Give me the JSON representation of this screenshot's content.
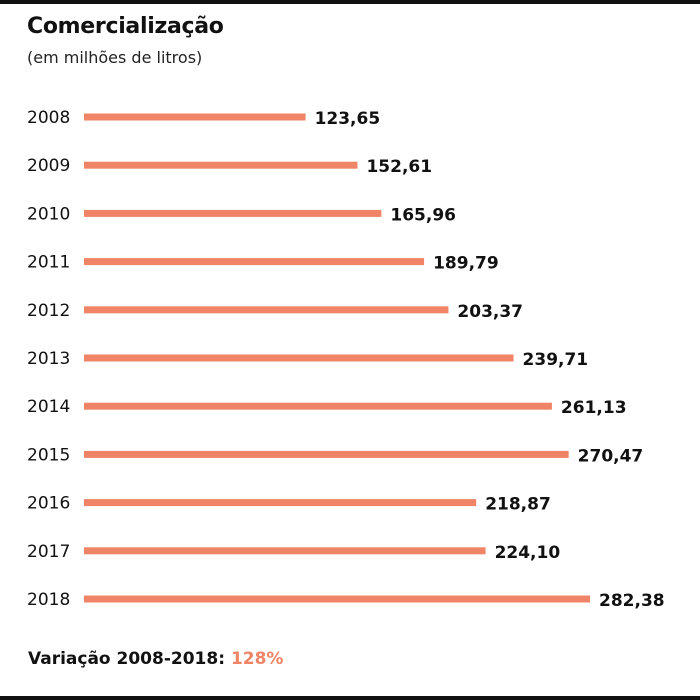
{
  "title": "Comercialização",
  "subtitle": "(em milhões de litros)",
  "footer": {
    "label": "Variação 2008-2018:",
    "value": "128%"
  },
  "colors": {
    "bar": "#f08466",
    "text": "#111111",
    "accent": "#f08466"
  },
  "chart_data": {
    "type": "bar",
    "orientation": "horizontal",
    "categories": [
      "2008",
      "2009",
      "2010",
      "2011",
      "2012",
      "2013",
      "2014",
      "2015",
      "2016",
      "2017",
      "2018"
    ],
    "values": [
      123.65,
      152.61,
      165.96,
      189.79,
      203.37,
      239.71,
      261.13,
      270.47,
      218.87,
      224.1,
      282.38
    ],
    "value_labels": [
      "123,65",
      "152,61",
      "165,96",
      "189,79",
      "203,37",
      "239,71",
      "261,13",
      "270,47",
      "218,87",
      "224,10",
      "282,38"
    ],
    "title": "Comercialização",
    "subtitle": "(em milhões de litros)",
    "grid": false
  }
}
